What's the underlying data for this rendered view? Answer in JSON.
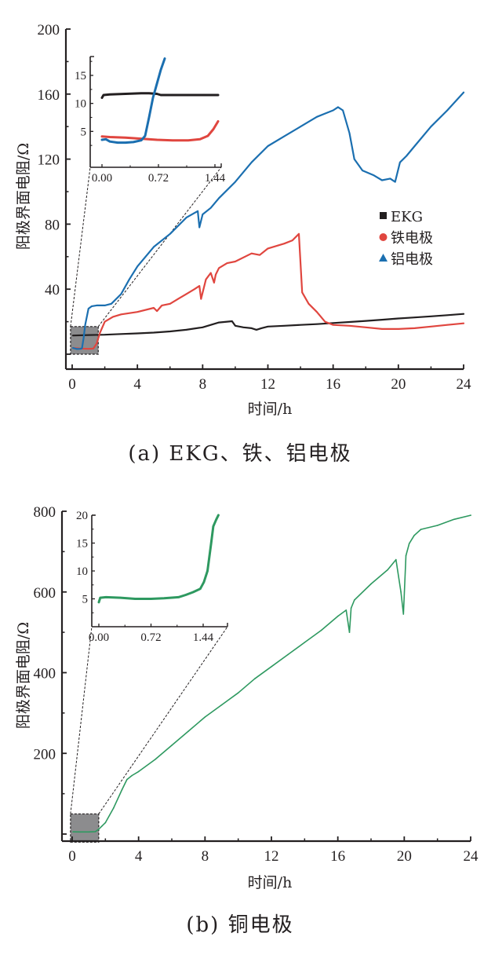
{
  "chart_data": [
    {
      "id": "a",
      "type": "line",
      "caption": "(a) EKG、铁、铝电极",
      "xlabel": "时间/h",
      "ylabel": "阳极界面电阻/Ω",
      "xlim": [
        0,
        24
      ],
      "ylim": [
        -10,
        200
      ],
      "xticks": [
        0,
        4,
        8,
        12,
        16,
        20,
        24
      ],
      "xtick_labels": [
        "0",
        "4",
        "8",
        "12",
        "16",
        "20",
        "24"
      ],
      "yticks": [
        40,
        80,
        120,
        160,
        200
      ],
      "ytick_labels": [
        "40",
        "80",
        "120",
        "160",
        "200"
      ],
      "legend": {
        "position": "right",
        "entries": [
          "EKG",
          "铁电极",
          "铝电极"
        ]
      },
      "zoom_region": {
        "x": [
          -0.1,
          1.6
        ],
        "y": [
          0,
          17
        ]
      },
      "series": [
        {
          "name": "EKG",
          "color": "#231f20",
          "marker": "square",
          "x": [
            0.05,
            1,
            2,
            3,
            4,
            5,
            6,
            7,
            8,
            8.5,
            9,
            9.5,
            9.8,
            10,
            10.5,
            11,
            11.3,
            11.6,
            12,
            13,
            14,
            15,
            16,
            17,
            18,
            19,
            20,
            21,
            22,
            23,
            24
          ],
          "y": [
            11.5,
            11.8,
            12,
            12.4,
            12.8,
            13.3,
            14,
            15,
            16.5,
            18,
            19.5,
            20,
            20.3,
            17.5,
            16.5,
            16,
            15,
            16,
            17,
            17.5,
            18,
            18.5,
            19.2,
            19.8,
            20.5,
            21.2,
            22,
            22.6,
            23.3,
            24,
            24.8
          ]
        },
        {
          "name": "铁电极",
          "color": "#e0463f",
          "marker": "circle",
          "x": [
            0.05,
            0.5,
            1,
            1.3,
            1.5,
            1.7,
            2,
            2.5,
            3,
            4,
            5,
            5.2,
            5.5,
            6,
            6.5,
            7,
            7.5,
            7.8,
            7.9,
            8.2,
            8.5,
            8.7,
            8.8,
            9,
            9.5,
            10,
            11,
            11.5,
            12,
            13,
            13.5,
            13.9,
            14.1,
            14.5,
            15,
            15.5,
            16,
            17,
            18,
            19,
            20,
            21,
            22,
            23,
            24
          ],
          "y": [
            3.8,
            3.5,
            3.3,
            3.5,
            6.5,
            13,
            20,
            23,
            24.5,
            26,
            28.5,
            26.5,
            30,
            31,
            34,
            37,
            40,
            42,
            34,
            46,
            50,
            44,
            49,
            53,
            56,
            57,
            62,
            61,
            65,
            68,
            70,
            74,
            38,
            31,
            26,
            20,
            18,
            17.5,
            16.5,
            15.5,
            15.5,
            16,
            17,
            18,
            19
          ]
        },
        {
          "name": "铝电极",
          "color": "#1b6fb0",
          "marker": "triangle",
          "x": [
            0.05,
            0.3,
            0.5,
            0.6,
            0.7,
            0.8,
            1,
            1.2,
            1.5,
            2,
            2.4,
            3,
            3.5,
            4,
            5,
            6,
            7,
            7.7,
            7.8,
            8,
            8.5,
            9,
            10,
            11,
            12,
            13,
            14,
            15,
            15.5,
            16,
            16.3,
            16.6,
            17,
            17.3,
            17.8,
            18.5,
            19,
            19.5,
            19.8,
            20.1,
            20.5,
            21,
            22,
            23,
            24
          ],
          "y": [
            3.8,
            3.2,
            3.3,
            3.6,
            10,
            18,
            28,
            29.5,
            30,
            30,
            31,
            37,
            46,
            54,
            66,
            74,
            84,
            88,
            78,
            86,
            90,
            96,
            106,
            118,
            128,
            134,
            140,
            146,
            148,
            150,
            152,
            150,
            136,
            120,
            113,
            110,
            107,
            108,
            106,
            118,
            122,
            128,
            140,
            150,
            161
          ]
        }
      ],
      "inset": {
        "xlim": [
          -0.1,
          1.5
        ],
        "ylim": [
          0,
          18
        ],
        "xticks": [
          0.0,
          0.72,
          1.44
        ],
        "xtick_labels": [
          "0.00",
          "0.72",
          "1.44"
        ],
        "yticks": [
          5,
          10,
          15
        ],
        "ytick_labels": [
          "5",
          "10",
          "15"
        ],
        "series": [
          {
            "name": "EKG",
            "color": "#231f20",
            "x": [
              0,
              0.02,
              0.1,
              0.3,
              0.5,
              0.6,
              0.7,
              0.75,
              0.9,
              1.1,
              1.3,
              1.48
            ],
            "y": [
              11.0,
              11.5,
              11.6,
              11.7,
              11.8,
              11.8,
              11.7,
              11.5,
              11.5,
              11.5,
              11.5,
              11.5
            ]
          },
          {
            "name": "铁电极",
            "color": "#e0463f",
            "x": [
              0,
              0.1,
              0.3,
              0.5,
              0.7,
              0.9,
              1.1,
              1.25,
              1.35,
              1.42,
              1.48
            ],
            "y": [
              4.1,
              4.0,
              3.9,
              3.7,
              3.5,
              3.4,
              3.4,
              3.6,
              4.2,
              5.4,
              6.8
            ]
          },
          {
            "name": "铝电极",
            "color": "#1b6fb0",
            "x": [
              0,
              0.05,
              0.1,
              0.2,
              0.3,
              0.4,
              0.5,
              0.55,
              0.6,
              0.65,
              0.7,
              0.75,
              0.8
            ],
            "y": [
              3.5,
              3.6,
              3.2,
              3.0,
              3.0,
              3.1,
              3.4,
              4.2,
              7.5,
              11.0,
              13.5,
              16.0,
              18.0
            ]
          }
        ]
      }
    },
    {
      "id": "b",
      "type": "line",
      "caption": "(b) 铜电极",
      "xlabel": "时间/h",
      "ylabel": "阳极界面电阻/Ω",
      "xlim": [
        0,
        24
      ],
      "ylim": [
        -20,
        800
      ],
      "xticks": [
        0,
        4,
        8,
        12,
        16,
        20,
        24
      ],
      "xtick_labels": [
        "0",
        "4",
        "8",
        "12",
        "16",
        "20",
        "24"
      ],
      "yticks": [
        200,
        400,
        600,
        800
      ],
      "ytick_labels": [
        "200",
        "400",
        "600",
        "800"
      ],
      "zoom_region": {
        "x": [
          -0.1,
          1.6
        ],
        "y": [
          -20,
          50
        ]
      },
      "series": [
        {
          "name": "铜电极",
          "color": "#2e9960",
          "x": [
            0.05,
            0.5,
            1,
            1.4,
            1.6,
            1.8,
            2,
            2.5,
            3,
            3.3,
            3.6,
            4,
            5,
            6,
            7,
            8,
            9,
            10,
            11,
            12,
            13,
            14,
            15,
            16,
            16.5,
            16.7,
            16.8,
            17,
            18,
            19,
            19.5,
            19.8,
            19.95,
            20.1,
            20.3,
            20.6,
            21,
            22,
            23,
            24
          ],
          "y": [
            5.5,
            5.2,
            5.2,
            6,
            12,
            20,
            28,
            65,
            110,
            135,
            145,
            155,
            185,
            220,
            255,
            290,
            320,
            350,
            385,
            415,
            445,
            475,
            505,
            540,
            555,
            500,
            560,
            580,
            620,
            655,
            680,
            600,
            545,
            690,
            720,
            740,
            755,
            765,
            780,
            790
          ]
        }
      ],
      "inset": {
        "xlim": [
          -0.05,
          1.65
        ],
        "ylim": [
          0,
          20
        ],
        "xticks": [
          0.0,
          0.72,
          1.44
        ],
        "xtick_labels": [
          "0.00",
          "0.72",
          "1.44"
        ],
        "yticks": [
          5,
          10,
          15,
          20
        ],
        "ytick_labels": [
          "5",
          "10",
          "15",
          "20"
        ],
        "series": [
          {
            "name": "铜电极",
            "color": "#2e9960",
            "x": [
              0,
              0.02,
              0.1,
              0.3,
              0.5,
              0.72,
              0.9,
              1.1,
              1.2,
              1.3,
              1.4,
              1.45,
              1.5,
              1.55,
              1.58,
              1.62,
              1.65
            ],
            "y": [
              4.4,
              5.2,
              5.3,
              5.2,
              5.0,
              5.0,
              5.1,
              5.3,
              5.7,
              6.2,
              6.8,
              8.0,
              10.0,
              15.0,
              18.0,
              19.2,
              20.0
            ]
          }
        ]
      }
    }
  ]
}
